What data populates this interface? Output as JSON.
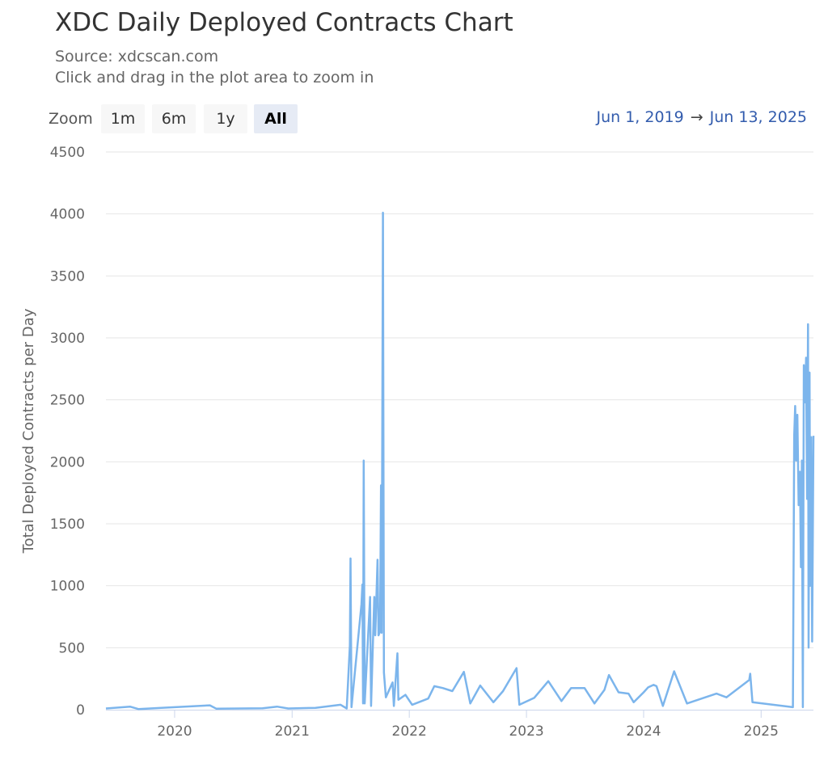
{
  "title": "XDC Daily Deployed Contracts Chart",
  "subtitle_source": "Source: xdcscan.com",
  "subtitle_hint": "Click and drag in the plot area to zoom in",
  "zoom": {
    "label": "Zoom",
    "buttons": [
      "1m",
      "6m",
      "1y",
      "All"
    ],
    "active": "All"
  },
  "range": {
    "from": "Jun 1, 2019",
    "arrow": "→",
    "to": "Jun 13, 2025"
  },
  "chart_data": {
    "type": "line",
    "title": "XDC Daily Deployed Contracts Chart",
    "ylabel": "Total Deployed Contracts per Day",
    "xlabel": "",
    "ylim": [
      0,
      4500
    ],
    "xlim": [
      "2019-06-01",
      "2025-06-13"
    ],
    "y_ticks": [
      0,
      500,
      1000,
      1500,
      2000,
      2500,
      3000,
      3500,
      4000,
      4500
    ],
    "x_ticks": [
      "2020",
      "2021",
      "2022",
      "2023",
      "2024",
      "2025"
    ],
    "grid": true,
    "color": "#7cb5ec",
    "series": [
      {
        "points": [
          [
            "2019-06-01",
            10
          ],
          [
            "2019-08-15",
            25
          ],
          [
            "2019-09-10",
            5
          ],
          [
            "2019-11-20",
            15
          ],
          [
            "2020-04-20",
            35
          ],
          [
            "2020-05-10",
            8
          ],
          [
            "2020-10-01",
            12
          ],
          [
            "2020-11-15",
            25
          ],
          [
            "2020-12-20",
            10
          ],
          [
            "2021-03-15",
            15
          ],
          [
            "2021-06-01",
            40
          ],
          [
            "2021-06-20",
            10
          ],
          [
            "2021-06-30",
            520
          ],
          [
            "2021-07-02",
            1220
          ],
          [
            "2021-07-05",
            20
          ],
          [
            "2021-08-05",
            850
          ],
          [
            "2021-08-08",
            1010
          ],
          [
            "2021-08-10",
            50
          ],
          [
            "2021-08-12",
            2010
          ],
          [
            "2021-08-15",
            50
          ],
          [
            "2021-09-01",
            910
          ],
          [
            "2021-09-04",
            30
          ],
          [
            "2021-09-14",
            910
          ],
          [
            "2021-09-17",
            600
          ],
          [
            "2021-09-24",
            1210
          ],
          [
            "2021-09-27",
            600
          ],
          [
            "2021-10-02",
            630
          ],
          [
            "2021-10-05",
            1810
          ],
          [
            "2021-10-07",
            620
          ],
          [
            "2021-10-11",
            4010
          ],
          [
            "2021-10-14",
            300
          ],
          [
            "2021-10-20",
            100
          ],
          [
            "2021-11-10",
            220
          ],
          [
            "2021-11-14",
            30
          ],
          [
            "2021-11-25",
            455
          ],
          [
            "2021-11-28",
            80
          ],
          [
            "2021-12-20",
            120
          ],
          [
            "2022-01-10",
            40
          ],
          [
            "2022-03-01",
            90
          ],
          [
            "2022-03-20",
            190
          ],
          [
            "2022-04-15",
            175
          ],
          [
            "2022-05-15",
            150
          ],
          [
            "2022-06-20",
            305
          ],
          [
            "2022-07-10",
            50
          ],
          [
            "2022-08-10",
            195
          ],
          [
            "2022-09-20",
            60
          ],
          [
            "2022-10-20",
            150
          ],
          [
            "2022-12-01",
            335
          ],
          [
            "2022-12-10",
            40
          ],
          [
            "2023-01-25",
            95
          ],
          [
            "2023-03-10",
            230
          ],
          [
            "2023-04-20",
            70
          ],
          [
            "2023-05-20",
            175
          ],
          [
            "2023-07-01",
            175
          ],
          [
            "2023-08-01",
            50
          ],
          [
            "2023-09-01",
            160
          ],
          [
            "2023-09-15",
            280
          ],
          [
            "2023-10-15",
            140
          ],
          [
            "2023-11-15",
            130
          ],
          [
            "2023-12-01",
            60
          ],
          [
            "2024-01-01",
            140
          ],
          [
            "2024-01-15",
            180
          ],
          [
            "2024-02-01",
            200
          ],
          [
            "2024-02-10",
            190
          ],
          [
            "2024-03-01",
            30
          ],
          [
            "2024-04-05",
            310
          ],
          [
            "2024-05-15",
            50
          ],
          [
            "2024-08-15",
            130
          ],
          [
            "2024-09-15",
            100
          ],
          [
            "2024-11-25",
            240
          ],
          [
            "2024-11-28",
            290
          ],
          [
            "2024-12-05",
            60
          ],
          [
            "2025-04-10",
            20
          ],
          [
            "2025-04-14",
            2210
          ],
          [
            "2025-04-17",
            2450
          ],
          [
            "2025-04-20",
            2010
          ],
          [
            "2025-04-24",
            2380
          ],
          [
            "2025-04-28",
            1650
          ],
          [
            "2025-05-02",
            1920
          ],
          [
            "2025-05-05",
            1150
          ],
          [
            "2025-05-08",
            2010
          ],
          [
            "2025-05-11",
            20
          ],
          [
            "2025-05-14",
            2780
          ],
          [
            "2025-05-18",
            2480
          ],
          [
            "2025-05-21",
            2840
          ],
          [
            "2025-05-24",
            1700
          ],
          [
            "2025-05-27",
            3110
          ],
          [
            "2025-05-29",
            500
          ],
          [
            "2025-06-01",
            2720
          ],
          [
            "2025-06-03",
            1000
          ],
          [
            "2025-06-06",
            2200
          ],
          [
            "2025-06-09",
            550
          ],
          [
            "2025-06-13",
            2210
          ]
        ]
      }
    ]
  }
}
